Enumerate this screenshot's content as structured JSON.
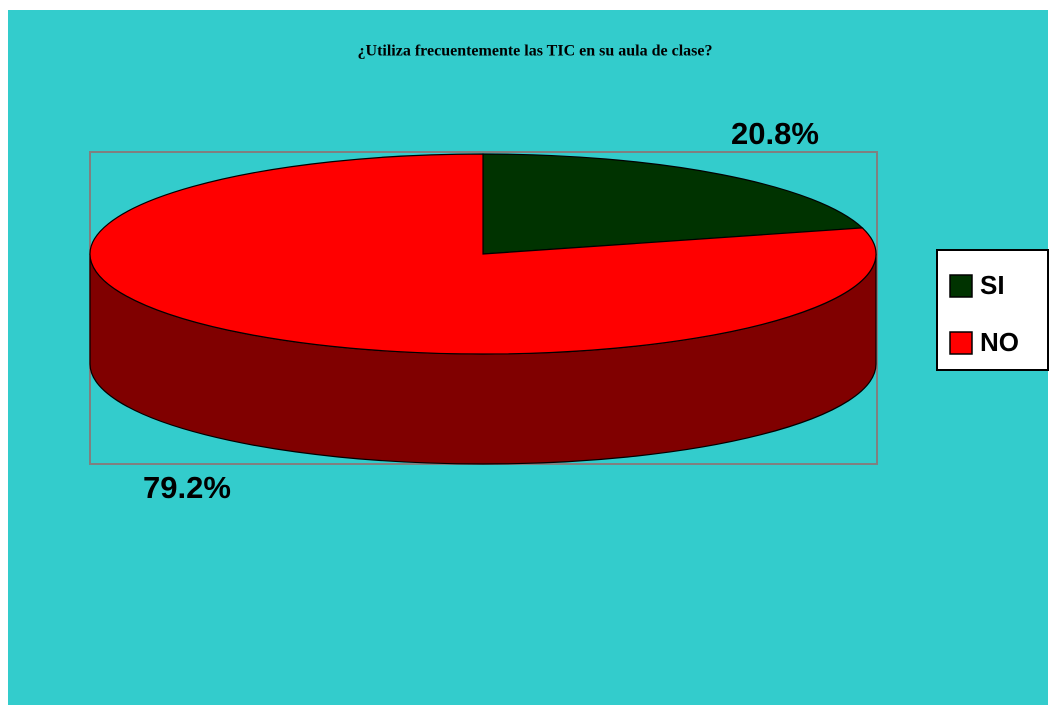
{
  "chart_data": {
    "type": "pie",
    "title": "¿Utiliza frecuentemente las TIC en su aula de clase?",
    "categories": [
      "SI",
      "NO"
    ],
    "series": [
      {
        "name": "¿Utiliza frecuentemente las TIC en su aula de clase?",
        "colors": [
          "#003300",
          "#FF0000"
        ],
        "values": [
          20.8,
          79.2
        ],
        "value_labels": [
          "20.8%",
          "79.2%"
        ]
      }
    ],
    "legend": "right"
  }
}
